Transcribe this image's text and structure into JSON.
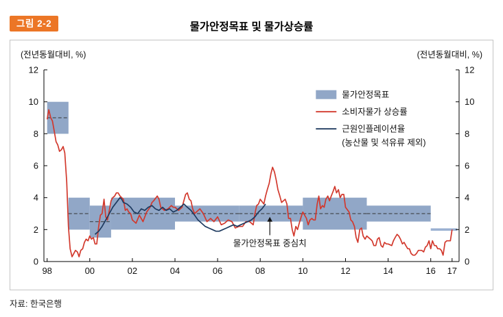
{
  "header": {
    "figure_label": "그림 2-2",
    "title": "물가안정목표 및 물가상승률"
  },
  "source_note": "자료: 한국은행",
  "chart": {
    "left_axis_label": "(전년동월대비, %)",
    "right_axis_label": "(전년동월대비, %)",
    "annotation": "물가안정목표 중심치",
    "legend": [
      {
        "swatch": "band",
        "label": "물가안정목표"
      },
      {
        "swatch": "line",
        "color": "#d2382c",
        "label": "소비자물가 상승률"
      },
      {
        "swatch": "line",
        "color": "#1e3a5f",
        "label": "근원인플레이션율",
        "sublabel": "(농산물 및 석유류 제외)"
      }
    ]
  },
  "chart_data": {
    "type": "line",
    "title": "물가안정목표 및 물가상승률",
    "xlim": [
      1997.85,
      2017.33
    ],
    "ylim": [
      0,
      12
    ],
    "y_ticks": [
      0,
      2,
      4,
      6,
      8,
      10,
      12
    ],
    "x_ticks": [
      [
        1998,
        "98"
      ],
      [
        2000,
        "00"
      ],
      [
        2002,
        "02"
      ],
      [
        2004,
        "04"
      ],
      [
        2006,
        "06"
      ],
      [
        2008,
        "08"
      ],
      [
        2010,
        "10"
      ],
      [
        2012,
        "12"
      ],
      [
        2014,
        "14"
      ],
      [
        2016,
        "16"
      ],
      [
        2017,
        "17"
      ]
    ],
    "band_color": "#91a7c7",
    "annotation_x": 2008.45,
    "target_bands": [
      {
        "x0": 1998,
        "x1": 1999,
        "low": 8.0,
        "high": 10.0,
        "center": 9.0
      },
      {
        "x0": 1999,
        "x1": 2000,
        "low": 2.0,
        "high": 4.0,
        "center": 3.0
      },
      {
        "x0": 2000,
        "x1": 2001,
        "low": 1.5,
        "high": 3.5,
        "center": 2.5
      },
      {
        "x0": 2001,
        "x1": 2004,
        "low": 2.0,
        "high": 4.0,
        "center": 3.0
      },
      {
        "x0": 2004,
        "x1": 2007,
        "low": 2.5,
        "high": 3.5,
        "center": 3.0
      },
      {
        "x0": 2007,
        "x1": 2010,
        "low": 2.5,
        "high": 3.5,
        "center": 3.0
      },
      {
        "x0": 2010,
        "x1": 2013,
        "low": 2.0,
        "high": 4.0,
        "center": 3.0
      },
      {
        "x0": 2013,
        "x1": 2016,
        "low": 2.5,
        "high": 3.5,
        "center": 3.0
      }
    ],
    "target_line": {
      "x0": 2016,
      "x1": 2017.25,
      "y": 2.0,
      "color": "#9bb1d2"
    },
    "series": [
      {
        "name": "소비자물가 상승률",
        "color": "#d2382c",
        "points": [
          [
            1998.0,
            8.9
          ],
          [
            1998.08,
            9.5
          ],
          [
            1998.17,
            9.0
          ],
          [
            1998.25,
            8.8
          ],
          [
            1998.33,
            8.2
          ],
          [
            1998.42,
            7.5
          ],
          [
            1998.5,
            7.3
          ],
          [
            1998.58,
            6.9
          ],
          [
            1998.67,
            7.0
          ],
          [
            1998.75,
            7.2
          ],
          [
            1998.83,
            6.8
          ],
          [
            1998.92,
            5.0
          ],
          [
            1999.0,
            2.2
          ],
          [
            1999.08,
            0.8
          ],
          [
            1999.17,
            0.3
          ],
          [
            1999.25,
            0.5
          ],
          [
            1999.33,
            0.7
          ],
          [
            1999.42,
            0.6
          ],
          [
            1999.5,
            0.3
          ],
          [
            1999.58,
            0.7
          ],
          [
            1999.67,
            0.8
          ],
          [
            1999.75,
            1.2
          ],
          [
            1999.83,
            1.4
          ],
          [
            1999.92,
            1.3
          ],
          [
            2000.0,
            1.6
          ],
          [
            2000.08,
            1.4
          ],
          [
            2000.17,
            1.5
          ],
          [
            2000.25,
            1.1
          ],
          [
            2000.33,
            1.1
          ],
          [
            2000.42,
            2.2
          ],
          [
            2000.5,
            2.9
          ],
          [
            2000.58,
            3.0
          ],
          [
            2000.67,
            3.9
          ],
          [
            2000.75,
            2.8
          ],
          [
            2000.83,
            2.6
          ],
          [
            2000.92,
            3.2
          ],
          [
            2001.0,
            3.8
          ],
          [
            2001.08,
            4.0
          ],
          [
            2001.17,
            4.1
          ],
          [
            2001.25,
            4.3
          ],
          [
            2001.33,
            4.3
          ],
          [
            2001.42,
            4.1
          ],
          [
            2001.5,
            4.0
          ],
          [
            2001.58,
            3.9
          ],
          [
            2001.67,
            3.2
          ],
          [
            2001.75,
            3.3
          ],
          [
            2001.83,
            3.1
          ],
          [
            2001.92,
            3.0
          ],
          [
            2002.0,
            2.6
          ],
          [
            2002.17,
            2.4
          ],
          [
            2002.33,
            2.9
          ],
          [
            2002.5,
            2.5
          ],
          [
            2002.67,
            3.1
          ],
          [
            2002.83,
            3.4
          ],
          [
            2002.92,
            3.7
          ],
          [
            2003.0,
            3.8
          ],
          [
            2003.17,
            4.1
          ],
          [
            2003.25,
            3.9
          ],
          [
            2003.33,
            3.4
          ],
          [
            2003.5,
            3.2
          ],
          [
            2003.67,
            3.3
          ],
          [
            2003.83,
            3.5
          ],
          [
            2003.92,
            3.4
          ],
          [
            2004.0,
            3.4
          ],
          [
            2004.17,
            3.2
          ],
          [
            2004.33,
            3.4
          ],
          [
            2004.5,
            4.2
          ],
          [
            2004.58,
            4.3
          ],
          [
            2004.67,
            3.9
          ],
          [
            2004.75,
            3.8
          ],
          [
            2004.83,
            3.3
          ],
          [
            2004.92,
            3.0
          ],
          [
            2005.0,
            3.1
          ],
          [
            2005.17,
            3.3
          ],
          [
            2005.33,
            3.0
          ],
          [
            2005.5,
            2.5
          ],
          [
            2005.67,
            2.7
          ],
          [
            2005.83,
            2.5
          ],
          [
            2006.0,
            2.8
          ],
          [
            2006.17,
            2.3
          ],
          [
            2006.33,
            2.4
          ],
          [
            2006.5,
            2.6
          ],
          [
            2006.67,
            2.5
          ],
          [
            2006.83,
            2.1
          ],
          [
            2007.0,
            2.2
          ],
          [
            2007.17,
            2.2
          ],
          [
            2007.33,
            2.5
          ],
          [
            2007.5,
            2.5
          ],
          [
            2007.67,
            2.3
          ],
          [
            2007.75,
            3.0
          ],
          [
            2007.83,
            3.5
          ],
          [
            2007.92,
            3.6
          ],
          [
            2008.0,
            3.9
          ],
          [
            2008.17,
            3.6
          ],
          [
            2008.25,
            4.1
          ],
          [
            2008.33,
            4.5
          ],
          [
            2008.42,
            4.9
          ],
          [
            2008.5,
            5.5
          ],
          [
            2008.58,
            5.9
          ],
          [
            2008.67,
            5.6
          ],
          [
            2008.75,
            5.1
          ],
          [
            2008.83,
            4.5
          ],
          [
            2008.92,
            4.1
          ],
          [
            2009.0,
            3.7
          ],
          [
            2009.17,
            3.9
          ],
          [
            2009.25,
            3.6
          ],
          [
            2009.33,
            2.7
          ],
          [
            2009.42,
            2.7
          ],
          [
            2009.5,
            2.0
          ],
          [
            2009.58,
            1.6
          ],
          [
            2009.67,
            2.2
          ],
          [
            2009.75,
            2.0
          ],
          [
            2009.83,
            2.4
          ],
          [
            2009.92,
            2.8
          ],
          [
            2010.0,
            3.1
          ],
          [
            2010.17,
            2.7
          ],
          [
            2010.25,
            2.3
          ],
          [
            2010.33,
            2.6
          ],
          [
            2010.42,
            2.7
          ],
          [
            2010.5,
            2.6
          ],
          [
            2010.58,
            2.6
          ],
          [
            2010.67,
            3.6
          ],
          [
            2010.75,
            4.1
          ],
          [
            2010.83,
            3.3
          ],
          [
            2010.92,
            3.5
          ],
          [
            2011.0,
            3.4
          ],
          [
            2011.08,
            3.9
          ],
          [
            2011.17,
            4.1
          ],
          [
            2011.25,
            3.8
          ],
          [
            2011.33,
            4.1
          ],
          [
            2011.42,
            4.4
          ],
          [
            2011.5,
            4.7
          ],
          [
            2011.58,
            4.3
          ],
          [
            2011.67,
            4.5
          ],
          [
            2011.75,
            4.0
          ],
          [
            2011.83,
            4.2
          ],
          [
            2011.92,
            4.2
          ],
          [
            2012.0,
            3.4
          ],
          [
            2012.17,
            3.1
          ],
          [
            2012.25,
            2.6
          ],
          [
            2012.33,
            2.5
          ],
          [
            2012.42,
            2.2
          ],
          [
            2012.5,
            1.5
          ],
          [
            2012.58,
            1.2
          ],
          [
            2012.67,
            2.0
          ],
          [
            2012.75,
            2.1
          ],
          [
            2012.83,
            1.6
          ],
          [
            2012.92,
            1.4
          ],
          [
            2013.0,
            1.6
          ],
          [
            2013.17,
            1.4
          ],
          [
            2013.25,
            1.3
          ],
          [
            2013.33,
            1.0
          ],
          [
            2013.42,
            1.0
          ],
          [
            2013.5,
            1.4
          ],
          [
            2013.58,
            1.5
          ],
          [
            2013.67,
            1.0
          ],
          [
            2013.75,
            0.9
          ],
          [
            2013.83,
            1.2
          ],
          [
            2013.92,
            1.1
          ],
          [
            2014.0,
            1.1
          ],
          [
            2014.17,
            1.0
          ],
          [
            2014.25,
            1.3
          ],
          [
            2014.33,
            1.5
          ],
          [
            2014.42,
            1.7
          ],
          [
            2014.5,
            1.6
          ],
          [
            2014.58,
            1.4
          ],
          [
            2014.67,
            1.1
          ],
          [
            2014.75,
            1.2
          ],
          [
            2014.83,
            1.0
          ],
          [
            2014.92,
            0.8
          ],
          [
            2015.0,
            0.8
          ],
          [
            2015.08,
            0.5
          ],
          [
            2015.17,
            0.4
          ],
          [
            2015.25,
            0.4
          ],
          [
            2015.33,
            0.5
          ],
          [
            2015.42,
            0.7
          ],
          [
            2015.5,
            0.7
          ],
          [
            2015.58,
            0.7
          ],
          [
            2015.67,
            0.6
          ],
          [
            2015.75,
            0.9
          ],
          [
            2015.83,
            1.0
          ],
          [
            2015.92,
            1.3
          ],
          [
            2016.0,
            0.8
          ],
          [
            2016.08,
            1.3
          ],
          [
            2016.17,
            1.0
          ],
          [
            2016.25,
            1.0
          ],
          [
            2016.33,
            0.8
          ],
          [
            2016.42,
            0.8
          ],
          [
            2016.5,
            0.7
          ],
          [
            2016.58,
            0.4
          ],
          [
            2016.67,
            1.2
          ],
          [
            2016.75,
            1.3
          ],
          [
            2016.83,
            1.3
          ],
          [
            2016.92,
            1.3
          ],
          [
            2017.0,
            2.0
          ]
        ]
      },
      {
        "name": "근원인플레이션율",
        "color": "#1e3a5f",
        "points": [
          [
            2000.25,
            1.7
          ],
          [
            2000.42,
            1.9
          ],
          [
            2000.58,
            2.2
          ],
          [
            2000.75,
            2.6
          ],
          [
            2000.92,
            3.0
          ],
          [
            2001.08,
            3.4
          ],
          [
            2001.25,
            3.7
          ],
          [
            2001.42,
            4.0
          ],
          [
            2001.5,
            3.9
          ],
          [
            2001.58,
            3.7
          ],
          [
            2001.75,
            3.6
          ],
          [
            2001.92,
            3.4
          ],
          [
            2002.08,
            3.1
          ],
          [
            2002.25,
            3.0
          ],
          [
            2002.42,
            3.3
          ],
          [
            2002.58,
            3.2
          ],
          [
            2002.75,
            3.4
          ],
          [
            2002.92,
            3.5
          ],
          [
            2003.08,
            3.3
          ],
          [
            2003.25,
            3.2
          ],
          [
            2003.42,
            3.4
          ],
          [
            2003.58,
            3.2
          ],
          [
            2003.75,
            3.3
          ],
          [
            2003.92,
            3.1
          ],
          [
            2004.08,
            3.2
          ],
          [
            2004.25,
            3.4
          ],
          [
            2004.42,
            3.6
          ],
          [
            2004.58,
            3.4
          ],
          [
            2004.75,
            3.2
          ],
          [
            2004.92,
            2.9
          ],
          [
            2005.08,
            2.6
          ],
          [
            2005.25,
            2.4
          ],
          [
            2005.42,
            2.2
          ],
          [
            2005.58,
            2.1
          ],
          [
            2005.75,
            2.0
          ],
          [
            2005.92,
            1.9
          ],
          [
            2006.08,
            1.9
          ],
          [
            2006.25,
            2.0
          ],
          [
            2006.42,
            2.1
          ],
          [
            2006.58,
            2.2
          ],
          [
            2006.75,
            2.3
          ],
          [
            2006.92,
            2.2
          ],
          [
            2007.08,
            2.3
          ],
          [
            2007.25,
            2.4
          ],
          [
            2007.42,
            2.5
          ],
          [
            2007.58,
            2.6
          ],
          [
            2007.75,
            2.8
          ],
          [
            2007.92,
            3.1
          ],
          [
            2008.08,
            3.3
          ],
          [
            2008.25,
            3.6
          ]
        ]
      }
    ]
  }
}
